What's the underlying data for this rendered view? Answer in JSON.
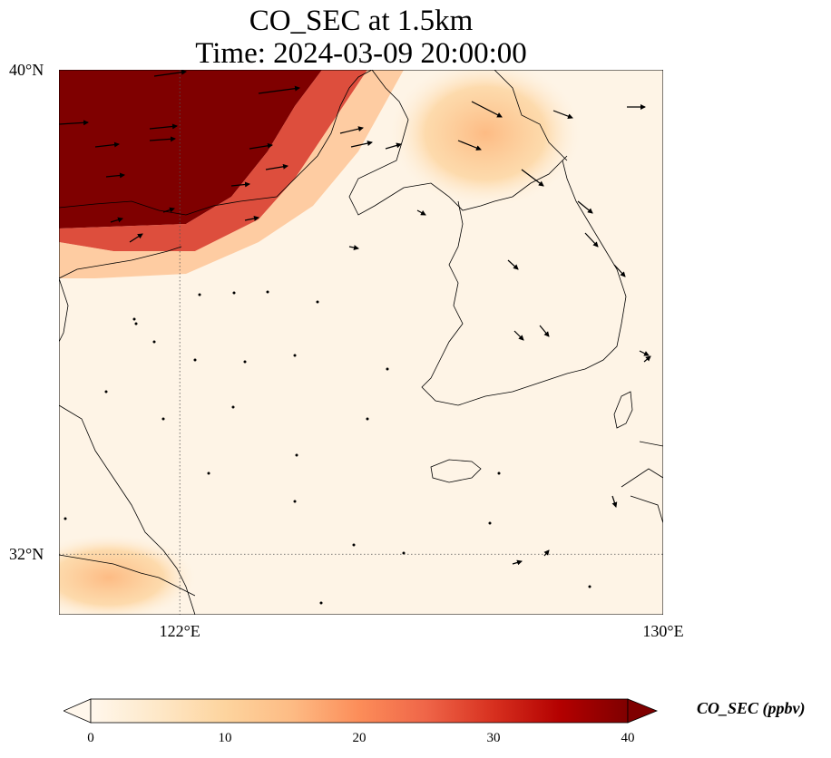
{
  "title_line1": "CO_SEC at 1.5km",
  "title_line2": "Time: 2024-03-09 20:00:00",
  "map": {
    "lat_range": [
      31.0,
      40.0
    ],
    "lon_range": [
      120.0,
      130.0
    ],
    "lat_ticks": [
      {
        "value": 40,
        "label": "40°N"
      },
      {
        "value": 32,
        "label": "32°N"
      }
    ],
    "lon_ticks": [
      {
        "value": 122,
        "label": "122°E"
      },
      {
        "value": 130,
        "label": "130°E"
      }
    ],
    "gridlines": "dotted",
    "wind_vectors": true,
    "coastlines": true
  },
  "colorbar": {
    "label": "CO_SEC (ppbv)",
    "colormap": "OrRd",
    "min": 0,
    "max": 40,
    "extend": "both",
    "ticks": [
      {
        "value": 0,
        "label": "0"
      },
      {
        "value": 10,
        "label": "10"
      },
      {
        "value": 20,
        "label": "20"
      },
      {
        "value": 30,
        "label": "30"
      },
      {
        "value": 40,
        "label": "40"
      }
    ],
    "colors": [
      "#fff7ec",
      "#fee8c8",
      "#fdd49e",
      "#fdbb84",
      "#fc8d59",
      "#ef6548",
      "#d7301f",
      "#b30000",
      "#7f0000"
    ]
  }
}
